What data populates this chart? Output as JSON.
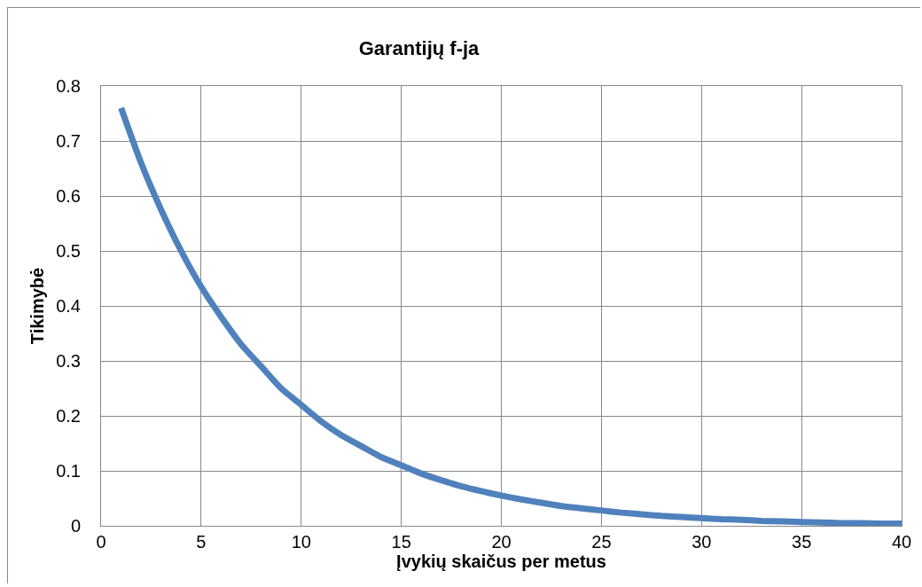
{
  "chart_data": {
    "type": "line",
    "title": "Garantijų f-ja",
    "xlabel": "Įvykių skaičus per metus",
    "ylabel": "Tikimybė",
    "x": [
      1,
      2,
      3,
      4,
      5,
      6,
      7,
      8,
      9,
      10,
      11,
      12,
      13,
      14,
      15,
      16,
      17,
      18,
      19,
      20,
      21,
      22,
      23,
      24,
      25,
      26,
      27,
      28,
      29,
      30,
      31,
      32,
      33,
      34,
      35,
      36,
      37,
      38,
      39,
      40
    ],
    "series": [
      {
        "color": "#4f81bd",
        "values": [
          0.76,
          0.66,
          0.575,
          0.5,
          0.435,
          0.38,
          0.33,
          0.29,
          0.25,
          0.22,
          0.19,
          0.165,
          0.145,
          0.125,
          0.11,
          0.095,
          0.083,
          0.072,
          0.063,
          0.055,
          0.048,
          0.042,
          0.036,
          0.032,
          0.028,
          0.024,
          0.021,
          0.018,
          0.016,
          0.014,
          0.012,
          0.011,
          0.009,
          0.008,
          0.007,
          0.006,
          0.005,
          0.005,
          0.004,
          0.004
        ]
      }
    ],
    "xlim": [
      0,
      40
    ],
    "xticks": [
      0,
      5,
      10,
      15,
      20,
      25,
      30,
      35,
      40
    ],
    "ylim": [
      0,
      0.8
    ],
    "yticks": [
      0,
      0.1,
      0.2,
      0.3,
      0.4,
      0.5,
      0.6,
      0.7,
      0.8
    ],
    "grid": true,
    "marker": "none",
    "line_style": "solid"
  }
}
